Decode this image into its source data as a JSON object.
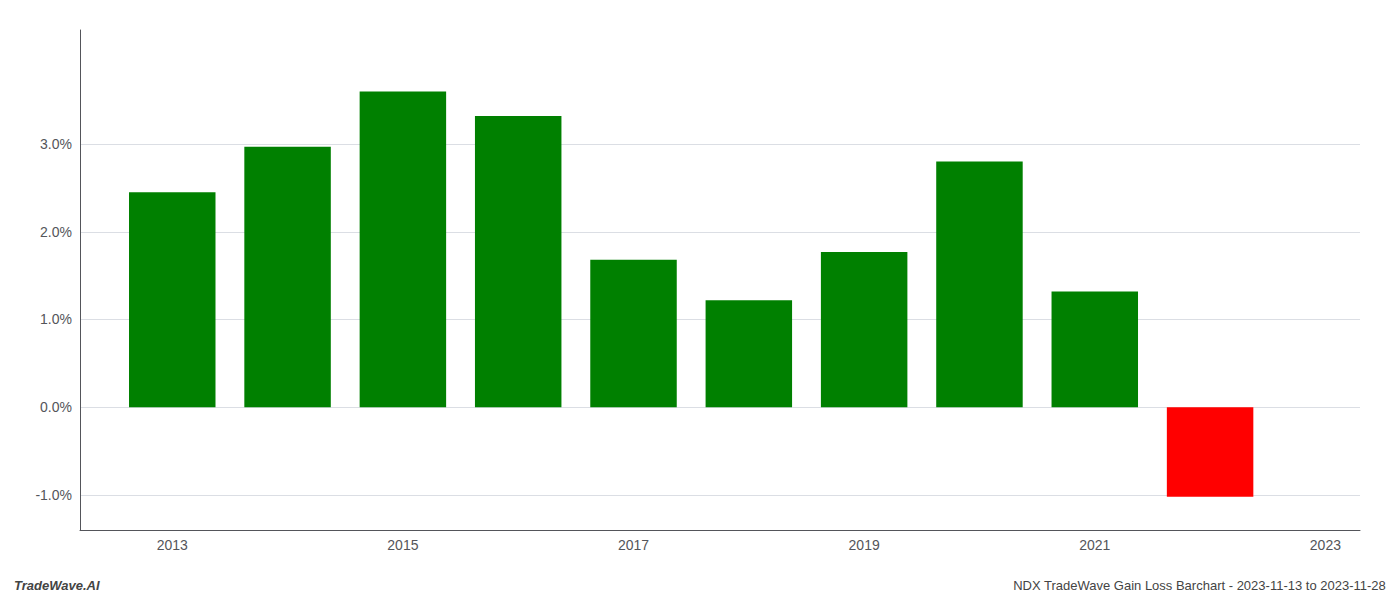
{
  "chart_data": {
    "type": "bar",
    "x": [
      2013,
      2014,
      2015,
      2016,
      2017,
      2018,
      2019,
      2020,
      2021,
      2022
    ],
    "values": [
      0.0245,
      0.0297,
      0.036,
      0.0332,
      0.0168,
      0.0122,
      0.0177,
      0.028,
      0.0132,
      -0.0102
    ],
    "colors": [
      "#008000",
      "#008000",
      "#008000",
      "#008000",
      "#008000",
      "#008000",
      "#008000",
      "#008000",
      "#008000",
      "#ff0000"
    ],
    "xlim": [
      2012.2,
      2023.3
    ],
    "xticks": [
      2013,
      2015,
      2017,
      2019,
      2021,
      2023
    ],
    "ylim": [
      -0.014,
      0.043
    ],
    "yticks": [
      {
        "value": -0.01,
        "label": "-1.0%"
      },
      {
        "value": 0.0,
        "label": "0.0%"
      },
      {
        "value": 0.01,
        "label": "1.0%"
      },
      {
        "value": 0.02,
        "label": "2.0%"
      },
      {
        "value": 0.03,
        "label": "3.0%"
      }
    ],
    "grid": true,
    "annotations": [
      "TradeWave.AI",
      "NDX TradeWave Gain Loss Barchart - 2023-11-13 to 2023-11-28"
    ]
  }
}
